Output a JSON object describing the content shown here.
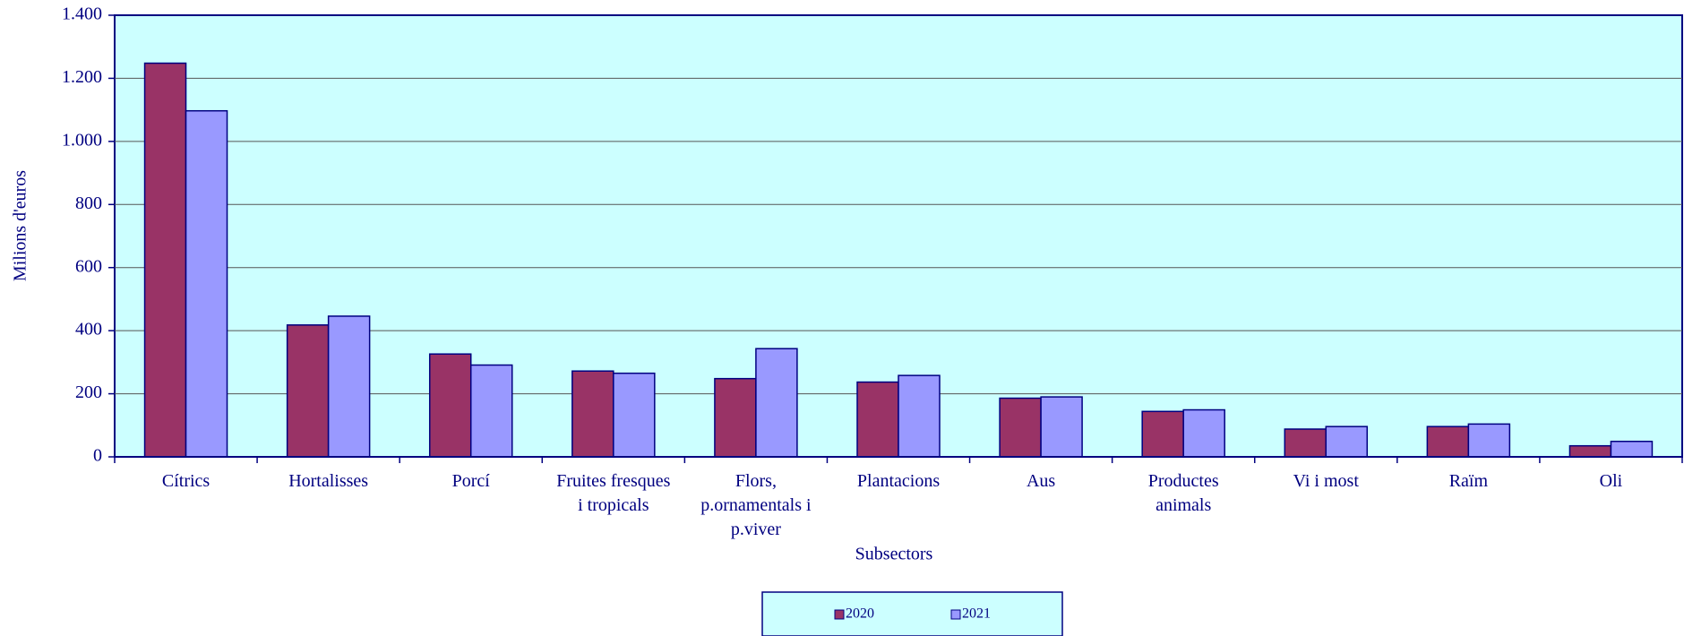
{
  "chart_data": {
    "type": "bar",
    "x_label": "Subsectors",
    "y_label": "Milions d'euros",
    "categories": [
      "Cítrics",
      "Hortalisses",
      "Porcí",
      "Fruites fresques\ni tropicals",
      "Flors,\np.ornamentals i\np.viver",
      "Plantacions",
      "Aus",
      "Productes\nanimals",
      "Vi i most",
      "Raïm",
      "Oli"
    ],
    "series": [
      {
        "name": "2020",
        "color": "#993366",
        "values": [
          1248,
          418,
          326,
          272,
          248,
          237,
          186,
          144,
          88,
          96,
          35
        ]
      },
      {
        "name": "2021",
        "color": "#9999ff",
        "values": [
          1097,
          446,
          291,
          265,
          343,
          258,
          190,
          149,
          96,
          104,
          49
        ]
      }
    ],
    "ylim": [
      0,
      1400
    ],
    "yticks": [
      0,
      200,
      400,
      600,
      800,
      {
        "value": 1000,
        "label": "1.000"
      },
      {
        "value": 1200,
        "label": "1.200"
      },
      {
        "value": 1400,
        "label": "1.400"
      }
    ],
    "grid": true,
    "legend": "bottom"
  }
}
